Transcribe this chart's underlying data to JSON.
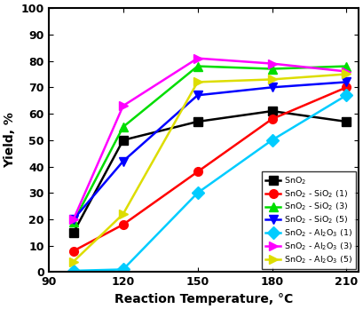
{
  "x": [
    100,
    120,
    150,
    180,
    210
  ],
  "series": [
    {
      "label": "SnO$_2$",
      "color": "#000000",
      "marker": "s",
      "values": [
        15,
        50,
        57,
        61,
        57
      ]
    },
    {
      "label": "SnO$_2$ - SiO$_2$ (1)",
      "color": "#ff0000",
      "marker": "o",
      "values": [
        8,
        18,
        38,
        58,
        70
      ]
    },
    {
      "label": "SnO$_2$ - SiO$_2$ (3)",
      "color": "#00dd00",
      "marker": "^",
      "values": [
        19,
        55,
        78,
        77,
        78
      ]
    },
    {
      "label": "SnO$_2$ - SiO$_2$ (5)",
      "color": "#0000ff",
      "marker": "v",
      "values": [
        20,
        42,
        67,
        70,
        72
      ]
    },
    {
      "label": "SnO$_2$ - Al$_2$O$_3$ (1)",
      "color": "#00ccff",
      "marker": "D",
      "values": [
        0.5,
        1,
        30,
        50,
        67
      ]
    },
    {
      "label": "SnO$_2$ - Al$_2$O$_3$ (3)",
      "color": "#ff00ff",
      "marker": ">",
      "values": [
        20,
        63,
        81,
        79,
        76
      ]
    },
    {
      "label": "SnO$_2$ - Al$_2$O$_3$ (5)",
      "color": "#dddd00",
      "marker": ">",
      "values": [
        4,
        22,
        72,
        73,
        75
      ]
    }
  ],
  "xlabel": "Reaction Temperature, °C",
  "ylabel": "Yield, %",
  "xlim": [
    90,
    215
  ],
  "ylim": [
    0,
    100
  ],
  "xticks": [
    90,
    120,
    150,
    180,
    210
  ],
  "yticks": [
    0,
    10,
    20,
    30,
    40,
    50,
    60,
    70,
    80,
    90,
    100
  ],
  "legend_loc": "lower right",
  "figsize": [
    4.09,
    3.48
  ],
  "dpi": 100,
  "linewidth": 1.8,
  "markersize": 7
}
